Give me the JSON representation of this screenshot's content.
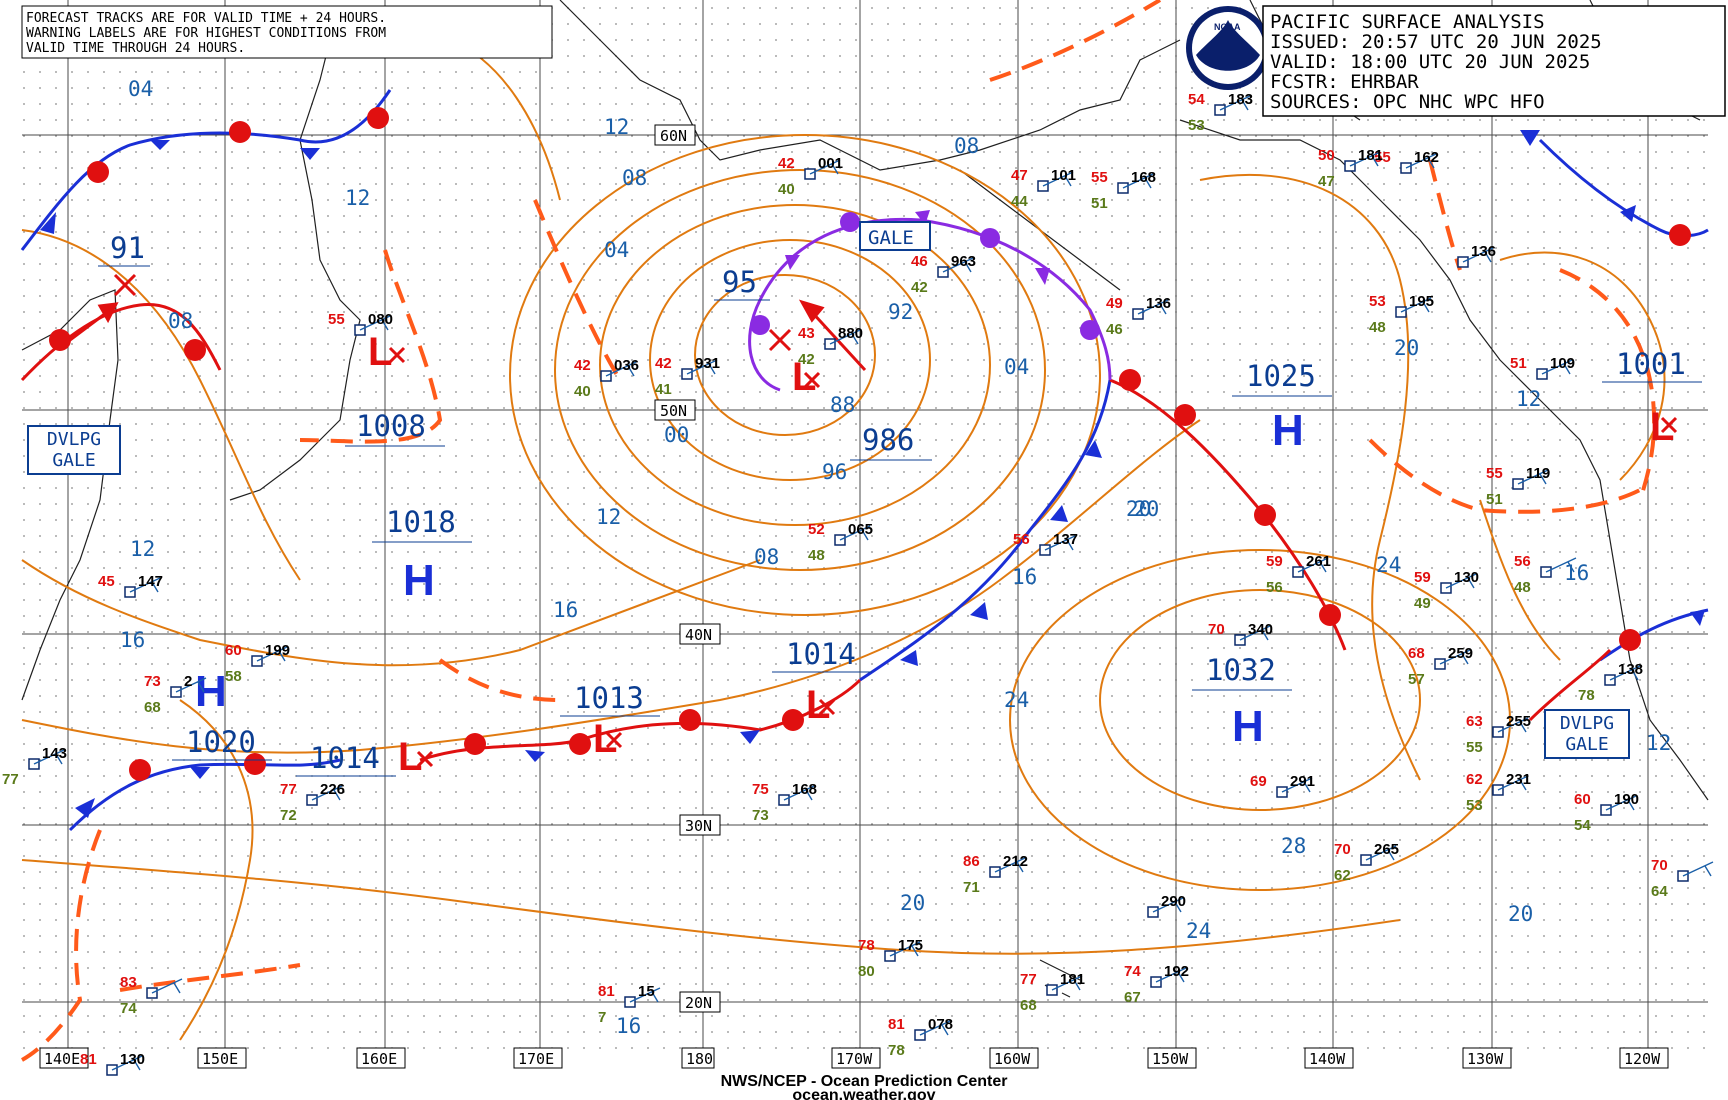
{
  "header": {
    "title": "PACIFIC SURFACE ANALYSIS",
    "issued": "ISSUED: 20:57 UTC 20 JUN 2025",
    "valid": "VALID:  18:00 UTC 20 JUN 2025",
    "forecaster": "FCSTR:  EHRBAR",
    "sources": "SOURCES: OPC NHC WPC HFO"
  },
  "logo_text": "NOAA",
  "note": [
    "FORECAST TRACKS ARE FOR VALID TIME + 24 HOURS.",
    "WARNING LABELS ARE FOR HIGHEST CONDITIONS FROM",
    "VALID TIME THROUGH 24 HOURS."
  ],
  "footer": {
    "line1": "NWS/NCEP - Ocean Prediction Center",
    "line2": "ocean.weather.gov"
  },
  "latitude_labels": [
    "60N",
    "50N",
    "40N",
    "30N",
    "20N"
  ],
  "longitude_labels": [
    "140E",
    "150E",
    "160E",
    "170E",
    "180",
    "170W",
    "160W",
    "150W",
    "140W",
    "130W",
    "120W"
  ],
  "pressure_centers": [
    {
      "type": "L",
      "value": "91"
    },
    {
      "type": "L",
      "value": "1008"
    },
    {
      "type": "H",
      "value": "1018"
    },
    {
      "type": "L",
      "value": "95"
    },
    {
      "type": "L",
      "value": "986"
    },
    {
      "type": "H",
      "value": "1020"
    },
    {
      "type": "L",
      "value": "1014"
    },
    {
      "type": "L",
      "value": "1013"
    },
    {
      "type": "L",
      "value": "1014"
    },
    {
      "type": "H",
      "value": "1025"
    },
    {
      "type": "H",
      "value": "1032"
    },
    {
      "type": "L",
      "value": "1001"
    }
  ],
  "warnings": [
    {
      "label": "GALE"
    },
    {
      "label": "DVLPG GALE"
    },
    {
      "label": "DVLPG GALE"
    }
  ],
  "isobar_labels": [
    "04",
    "08",
    "12",
    "12",
    "08",
    "04",
    "00",
    "96",
    "88",
    "92",
    "08",
    "12",
    "16",
    "04",
    "08",
    "16",
    "20",
    "24",
    "16",
    "20",
    "24",
    "28",
    "24",
    "20",
    "20",
    "12",
    "16",
    "16",
    "12",
    "12",
    "20"
  ],
  "stations": [
    {
      "id": "s1",
      "plot": "183",
      "temp": "54",
      "dew": "53"
    },
    {
      "id": "s2",
      "plot": "101",
      "temp": "47",
      "dew": "44"
    },
    {
      "id": "s3",
      "plot": "168",
      "temp": "55",
      "dew": "51"
    },
    {
      "id": "s4",
      "plot": "001",
      "temp": "42",
      "dew": "40"
    },
    {
      "id": "s5",
      "plot": "963",
      "temp": "46",
      "dew": "42"
    },
    {
      "id": "s6",
      "plot": "880",
      "temp": "43",
      "dew": "42"
    },
    {
      "id": "s7",
      "plot": "931",
      "temp": "42",
      "dew": "41"
    },
    {
      "id": "s8",
      "plot": "036",
      "temp": "42",
      "dew": "40"
    },
    {
      "id": "s9",
      "plot": "080",
      "temp": "55",
      "dew": ""
    },
    {
      "id": "s10",
      "plot": "136",
      "temp": "49",
      "dew": "46"
    },
    {
      "id": "s11",
      "plot": "065",
      "temp": "52",
      "dew": "48"
    },
    {
      "id": "s12",
      "plot": "137",
      "temp": "56",
      "dew": ""
    },
    {
      "id": "s13",
      "plot": "147",
      "temp": "45",
      "dew": ""
    },
    {
      "id": "s14",
      "plot": "199",
      "temp": "60",
      "dew": "58"
    },
    {
      "id": "s15",
      "plot": "2",
      "temp": "73",
      "dew": "68"
    },
    {
      "id": "s16",
      "plot": "143",
      "temp": "",
      "dew": "77"
    },
    {
      "id": "s17",
      "plot": "226",
      "temp": "77",
      "dew": "72"
    },
    {
      "id": "s18",
      "plot": "168",
      "temp": "75",
      "dew": "73"
    },
    {
      "id": "s19",
      "plot": "212",
      "temp": "86",
      "dew": "71"
    },
    {
      "id": "s20",
      "plot": "175",
      "temp": "78",
      "dew": "80"
    },
    {
      "id": "s21",
      "plot": "078",
      "temp": "81",
      "dew": "78"
    },
    {
      "id": "s22",
      "plot": "181",
      "temp": "77",
      "dew": "68"
    },
    {
      "id": "s23",
      "plot": "15",
      "temp": "81",
      "dew": "7"
    },
    {
      "id": "s24",
      "plot": "",
      "temp": "83",
      "dew": "74"
    },
    {
      "id": "s25",
      "plot": "290",
      "temp": "",
      "dew": ""
    },
    {
      "id": "s26",
      "plot": "192",
      "temp": "74",
      "dew": "67"
    },
    {
      "id": "s27",
      "plot": "291",
      "temp": "69",
      "dew": ""
    },
    {
      "id": "s28",
      "plot": "340",
      "temp": "70",
      "dew": ""
    },
    {
      "id": "s29",
      "plot": "265",
      "temp": "70",
      "dew": "62"
    },
    {
      "id": "s30",
      "plot": "261",
      "temp": "59",
      "dew": "56"
    },
    {
      "id": "s31",
      "plot": "130",
      "temp": "59",
      "dew": "49"
    },
    {
      "id": "s32",
      "plot": "259",
      "temp": "68",
      "dew": "57"
    },
    {
      "id": "s33",
      "plot": "255",
      "temp": "63",
      "dew": "55"
    },
    {
      "id": "s34",
      "plot": "231",
      "temp": "62",
      "dew": "53"
    },
    {
      "id": "s35",
      "plot": "190",
      "temp": "60",
      "dew": "54"
    },
    {
      "id": "s36",
      "plot": "",
      "temp": "70",
      "dew": "64"
    },
    {
      "id": "s37",
      "plot": "195",
      "temp": "53",
      "dew": "48"
    },
    {
      "id": "s38",
      "plot": "119",
      "temp": "55",
      "dew": "51"
    },
    {
      "id": "s39",
      "plot": "109",
      "temp": "51",
      "dew": ""
    },
    {
      "id": "s40",
      "plot": "162",
      "temp": "55",
      "dew": ""
    },
    {
      "id": "s41",
      "plot": "181",
      "temp": "50",
      "dew": "47"
    },
    {
      "id": "s42",
      "plot": "136",
      "temp": "",
      "dew": ""
    },
    {
      "id": "s43",
      "plot": "138",
      "temp": "",
      "dew": "78"
    },
    {
      "id": "s44",
      "plot": "",
      "temp": "56",
      "dew": "48"
    },
    {
      "id": "s45",
      "plot": "130",
      "temp": "81",
      "dew": ""
    }
  ],
  "colors": {
    "isobar": "#e07a10",
    "cold_front": "#1a2fd6",
    "warm_front": "#e01010",
    "occluded_front": "#8a2be2",
    "trough": "#ff5a1a",
    "grid": "#4a4a4a",
    "coast": "#202020",
    "label_blue": "#1a5fa8"
  }
}
